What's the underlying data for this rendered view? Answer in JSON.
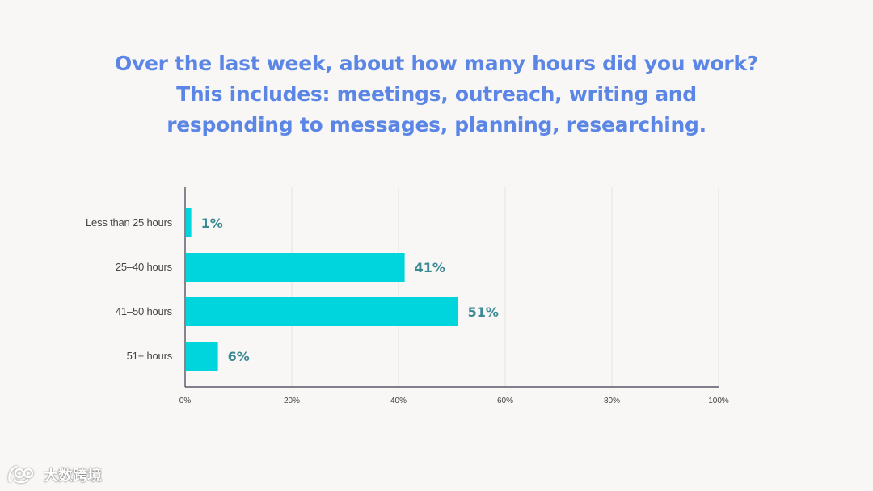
{
  "title": "Over the last week, about how many hours did you work? This includes: meetings, outreach, writing and responding to messages, planning, researching.",
  "colors": {
    "title": "#5b86e5",
    "bar": "#00d5dd",
    "value_label": "#3b8a93",
    "axis_text": "#444444",
    "grid": "#e3e3e3",
    "axis": "#3a3a4a"
  },
  "watermark": {
    "icon": "logo-icon",
    "text": "大数跨境"
  },
  "chart_data": {
    "type": "bar",
    "orientation": "horizontal",
    "categories": [
      "Less than 25 hours",
      "25–40 hours",
      "41–50 hours",
      "51+ hours"
    ],
    "values": [
      1,
      41,
      51,
      6
    ],
    "value_labels": [
      "1%",
      "41%",
      "51%",
      "6%"
    ],
    "x_ticks": [
      "0%",
      "20%",
      "40%",
      "60%",
      "80%",
      "100%"
    ],
    "xlim": [
      0,
      100
    ],
    "grid": true,
    "legend": false,
    "title": "Over the last week, about how many hours did you work? This includes: meetings, outreach, writing and responding to messages, planning, researching.",
    "xlabel": "",
    "ylabel": ""
  }
}
